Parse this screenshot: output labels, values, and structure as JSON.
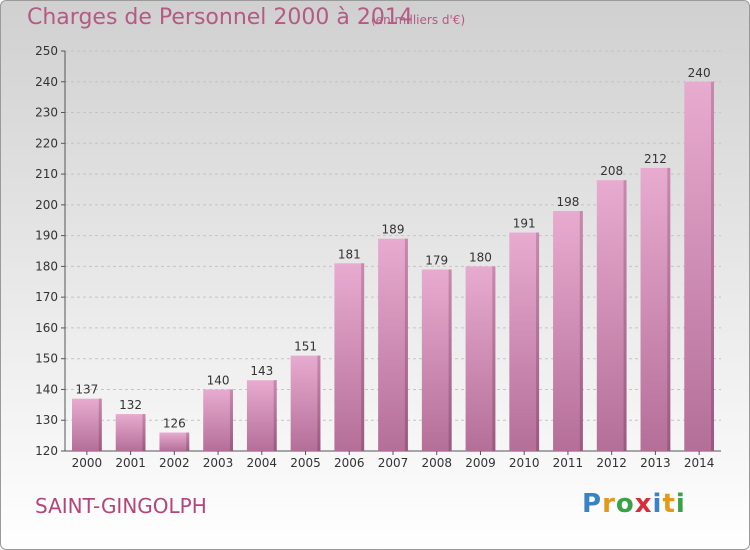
{
  "header": {
    "title": "Charges de Personnel 2000 à 2014",
    "subtitle": "(en milliers d'€)"
  },
  "commune": "SAINT-GINGOLPH",
  "logo": {
    "text": "Proxiti"
  },
  "colors": {
    "accent": "#b45a84",
    "bar_light": "#e6a8cc",
    "bar_dark": "#b87098"
  },
  "chart_data": {
    "type": "bar",
    "title": "Charges de Personnel 2000 à 2014",
    "subtitle": "(en milliers d'€)",
    "xlabel": "",
    "ylabel": "",
    "categories": [
      "2000",
      "2001",
      "2002",
      "2003",
      "2004",
      "2005",
      "2006",
      "2007",
      "2008",
      "2009",
      "2010",
      "2011",
      "2012",
      "2013",
      "2014"
    ],
    "values": [
      137,
      132,
      126,
      140,
      143,
      151,
      181,
      189,
      179,
      180,
      191,
      198,
      208,
      212,
      240
    ],
    "ylim": [
      120,
      250
    ],
    "yticks": [
      120,
      130,
      140,
      150,
      160,
      170,
      180,
      190,
      200,
      210,
      220,
      230,
      240,
      250
    ],
    "grid": true,
    "legend": "none"
  }
}
